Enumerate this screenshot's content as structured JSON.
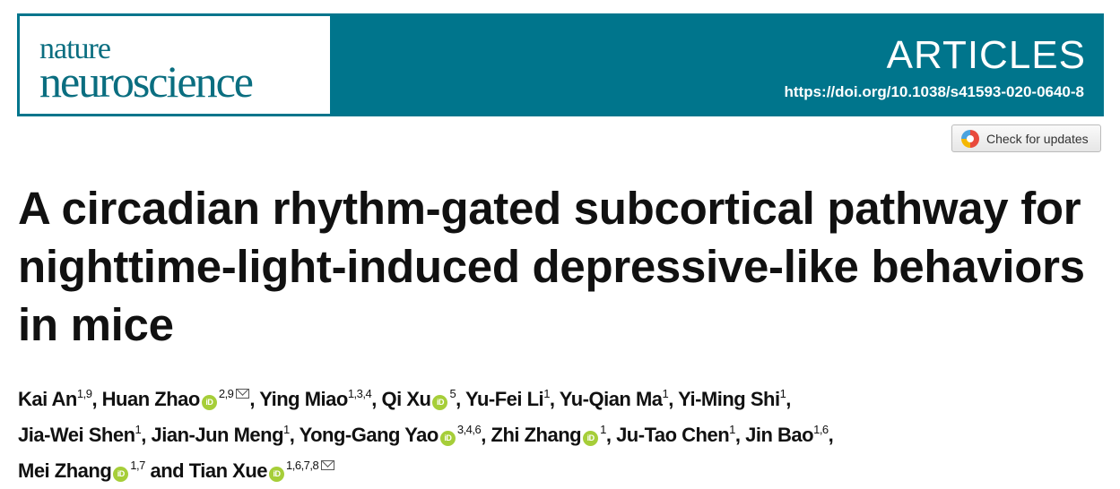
{
  "journal": {
    "logo_line1": "nature",
    "logo_line2": "neuroscience",
    "section": "ARTICLES",
    "doi": "https://doi.org/10.1038/s41593-020-0640-8"
  },
  "check_updates": "Check for updates",
  "title": "A circadian rhythm-gated subcortical pathway for nighttime-light-induced depressive-like behaviors in mice",
  "authors": [
    {
      "name": "Kai An",
      "sup": "1,9",
      "orcid": false,
      "email": false
    },
    {
      "name": "Huan Zhao",
      "sup": "2,9",
      "orcid": true,
      "email": true
    },
    {
      "name": "Ying Miao",
      "sup": "1,3,4",
      "orcid": false,
      "email": false
    },
    {
      "name": "Qi Xu",
      "sup": "5",
      "orcid": true,
      "email": false
    },
    {
      "name": "Yu-Fei Li",
      "sup": "1",
      "orcid": false,
      "email": false
    },
    {
      "name": "Yu-Qian Ma",
      "sup": "1",
      "orcid": false,
      "email": false
    },
    {
      "name": "Yi-Ming Shi",
      "sup": "1",
      "orcid": false,
      "email": false
    },
    {
      "name": "Jia-Wei Shen",
      "sup": "1",
      "orcid": false,
      "email": false
    },
    {
      "name": "Jian-Jun Meng",
      "sup": "1",
      "orcid": false,
      "email": false
    },
    {
      "name": "Yong-Gang Yao",
      "sup": "3,4,6",
      "orcid": true,
      "email": false
    },
    {
      "name": "Zhi Zhang",
      "sup": "1",
      "orcid": true,
      "email": false
    },
    {
      "name": "Ju-Tao Chen",
      "sup": "1",
      "orcid": false,
      "email": false
    },
    {
      "name": "Jin Bao",
      "sup": "1,6",
      "orcid": false,
      "email": false
    },
    {
      "name": "Mei Zhang",
      "sup": "1,7",
      "orcid": true,
      "email": false
    },
    {
      "name": "Tian Xue",
      "sup": "1,6,7,8",
      "orcid": true,
      "email": true
    }
  ],
  "orcid_label": "iD",
  "and_label": "and"
}
